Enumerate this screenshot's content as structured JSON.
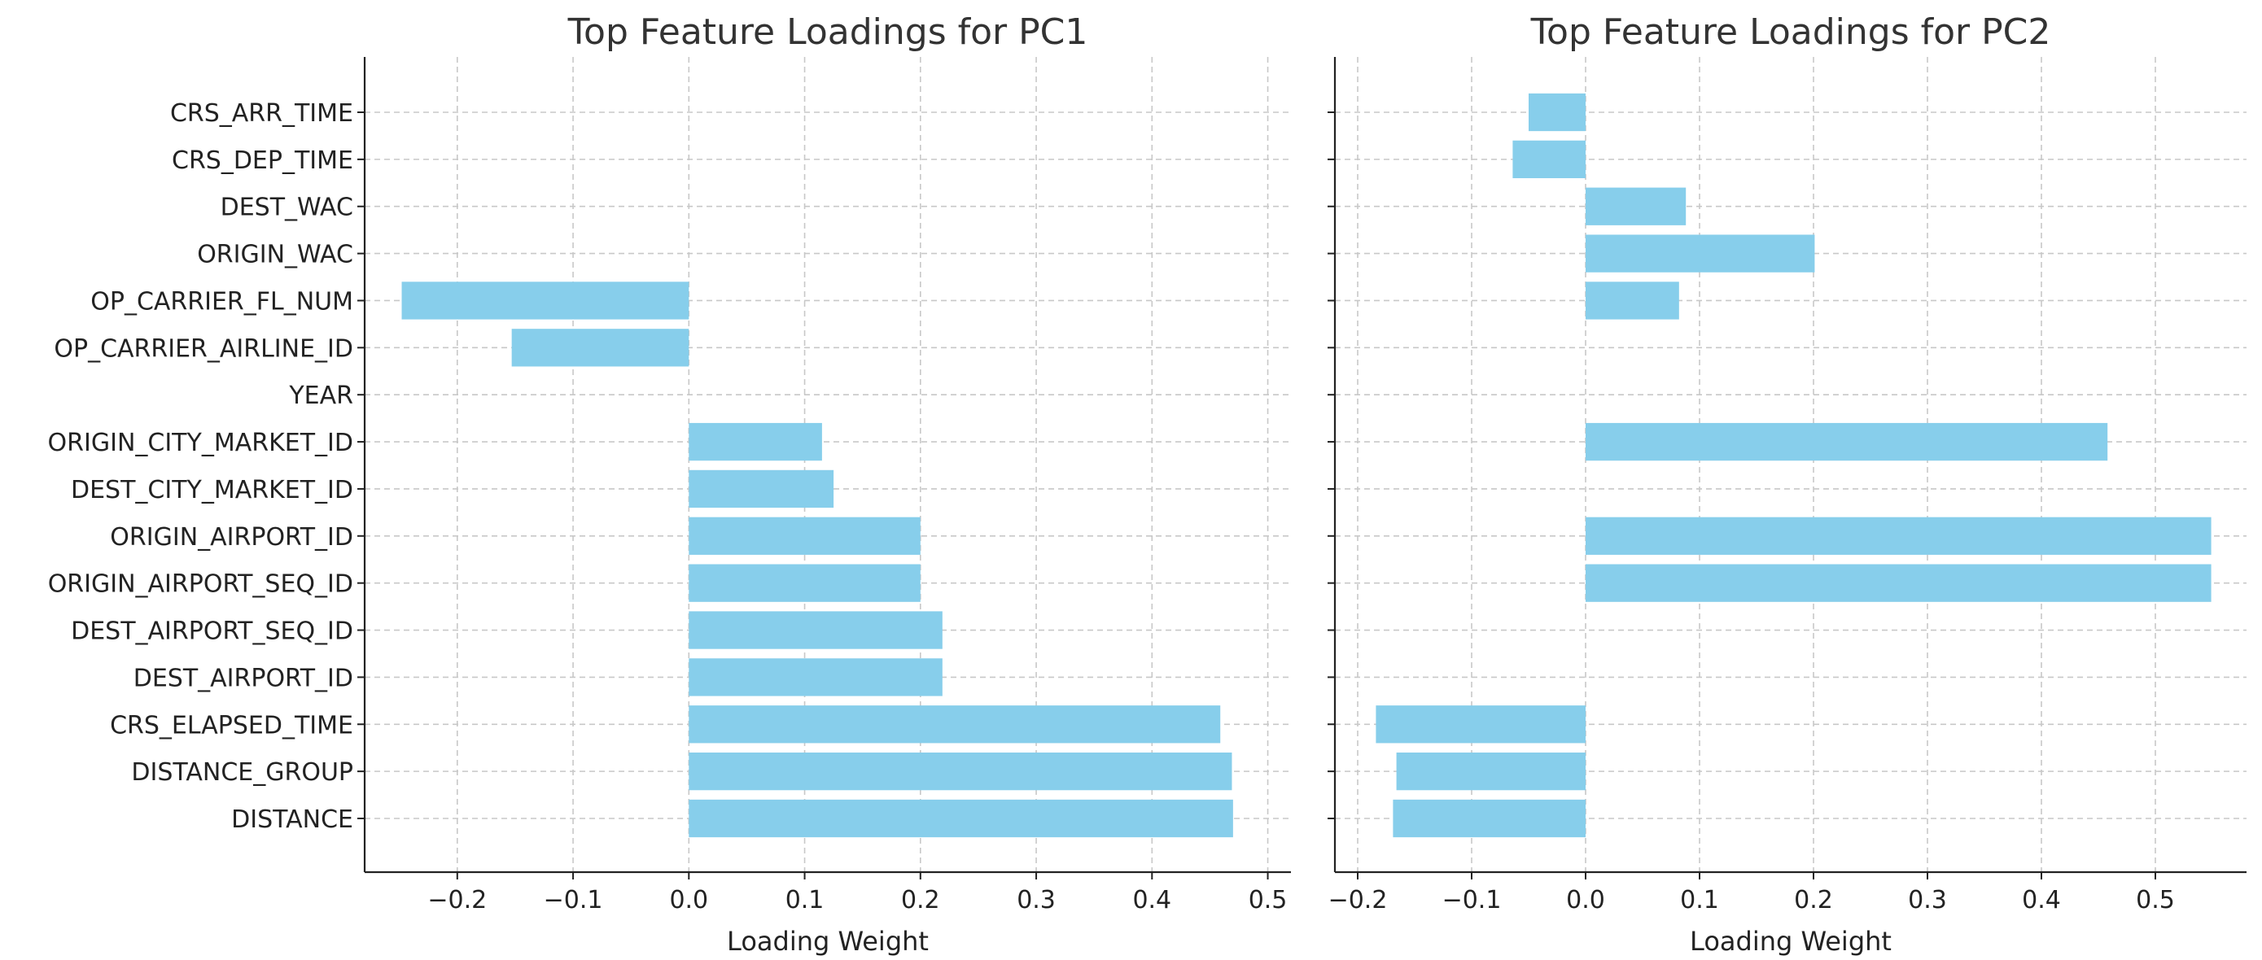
{
  "chart_data": [
    {
      "type": "bar",
      "orientation": "horizontal",
      "title": "Top Feature Loadings for PC1",
      "xlabel": "Loading Weight",
      "ylabel": "",
      "xlim": [
        -0.28,
        0.52
      ],
      "xticks": [
        -0.2,
        -0.1,
        0.0,
        0.1,
        0.2,
        0.3,
        0.4,
        0.5
      ],
      "xtick_labels": [
        "−0.2",
        "−0.1",
        "0.0",
        "0.1",
        "0.2",
        "0.3",
        "0.4",
        "0.5"
      ],
      "grid": true,
      "bar_color": "#87ceeb",
      "categories": [
        "DISTANCE",
        "DISTANCE_GROUP",
        "CRS_ELAPSED_TIME",
        "DEST_AIRPORT_ID",
        "DEST_AIRPORT_SEQ_ID",
        "ORIGIN_AIRPORT_SEQ_ID",
        "ORIGIN_AIRPORT_ID",
        "DEST_CITY_MARKET_ID",
        "ORIGIN_CITY_MARKET_ID",
        "YEAR",
        "OP_CARRIER_AIRLINE_ID",
        "OP_CARRIER_FL_NUM",
        "ORIGIN_WAC",
        "DEST_WAC",
        "CRS_DEP_TIME",
        "CRS_ARR_TIME"
      ],
      "values": [
        0.47,
        0.469,
        0.459,
        0.219,
        0.219,
        0.2,
        0.2,
        0.125,
        0.115,
        0.0,
        -0.153,
        -0.248,
        0.0,
        0.0,
        0.0,
        0.0
      ]
    },
    {
      "type": "bar",
      "orientation": "horizontal",
      "title": "Top Feature Loadings for PC2",
      "xlabel": "Loading Weight",
      "ylabel": "",
      "xlim": [
        -0.22,
        0.58
      ],
      "xticks": [
        -0.2,
        -0.1,
        0.0,
        0.1,
        0.2,
        0.3,
        0.4,
        0.5
      ],
      "xtick_labels": [
        "−0.2",
        "−0.1",
        "0.0",
        "0.1",
        "0.2",
        "0.3",
        "0.4",
        "0.5"
      ],
      "grid": true,
      "bar_color": "#87ceeb",
      "categories": [
        "DISTANCE",
        "DISTANCE_GROUP",
        "CRS_ELAPSED_TIME",
        "DEST_AIRPORT_ID",
        "DEST_AIRPORT_SEQ_ID",
        "ORIGIN_AIRPORT_SEQ_ID",
        "ORIGIN_AIRPORT_ID",
        "DEST_CITY_MARKET_ID",
        "ORIGIN_CITY_MARKET_ID",
        "YEAR",
        "OP_CARRIER_AIRLINE_ID",
        "OP_CARRIER_FL_NUM",
        "ORIGIN_WAC",
        "DEST_WAC",
        "CRS_DEP_TIME",
        "CRS_ARR_TIME"
      ],
      "values": [
        -0.169,
        -0.166,
        -0.184,
        0.0,
        0.0,
        0.549,
        0.549,
        0.0,
        0.458,
        0.0,
        0.0,
        0.082,
        0.201,
        0.088,
        -0.064,
        -0.05
      ]
    }
  ]
}
